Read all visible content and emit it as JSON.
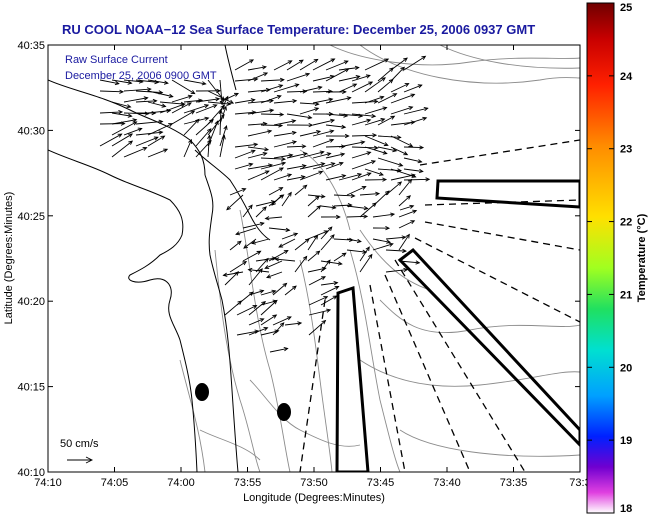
{
  "title": "RU COOL  NOAA−12  Sea Surface Temperature:  December 25, 2006 0937 GMT",
  "overlay": {
    "line1": "Raw Surface Current",
    "line2": "December 25, 2006 0900 GMT"
  },
  "axes": {
    "xlabel": "Longitude (Degrees:Minutes)",
    "ylabel": "Latitude (Degrees:Minutes)",
    "x_ticks": [
      "74:10",
      "74:05",
      "74:00",
      "73:55",
      "73:50",
      "73:45",
      "73:40",
      "73:35",
      "73:3"
    ],
    "y_ticks": [
      "40:35",
      "40:30",
      "40:25",
      "40:20",
      "40:15",
      "40:10"
    ]
  },
  "scale": {
    "label": "50 cm/s"
  },
  "colorbar": {
    "label": "Temperature (°C)",
    "ticks": [
      "25",
      "24",
      "23",
      "22",
      "21",
      "20",
      "19",
      "18"
    ],
    "min": 18,
    "max": 25
  },
  "colors": {
    "title_text": "#1a1aa0",
    "contour": "#8c8c8c"
  }
}
